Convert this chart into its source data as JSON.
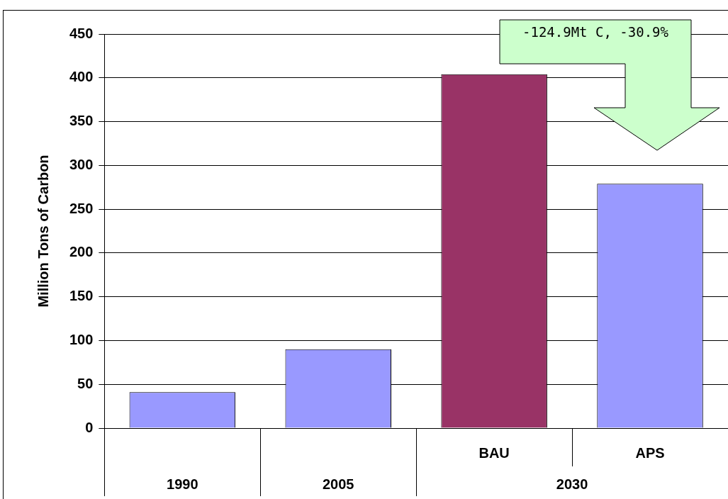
{
  "chart_data": {
    "type": "bar",
    "ylabel": "Million Tons of Carbon",
    "categories": [
      "1990",
      "2005",
      "BAU",
      "APS"
    ],
    "values": [
      41,
      90,
      404,
      279
    ],
    "colors": [
      "#9999ff",
      "#9999ff",
      "#993366",
      "#9999ff"
    ],
    "ylim": [
      0,
      450
    ],
    "yticks": [
      0,
      50,
      100,
      150,
      200,
      250,
      300,
      350,
      400,
      450
    ],
    "grid": "y",
    "legend": false,
    "annotations": [
      "-124.9Mt C, -30.9%",
      "2030"
    ]
  }
}
